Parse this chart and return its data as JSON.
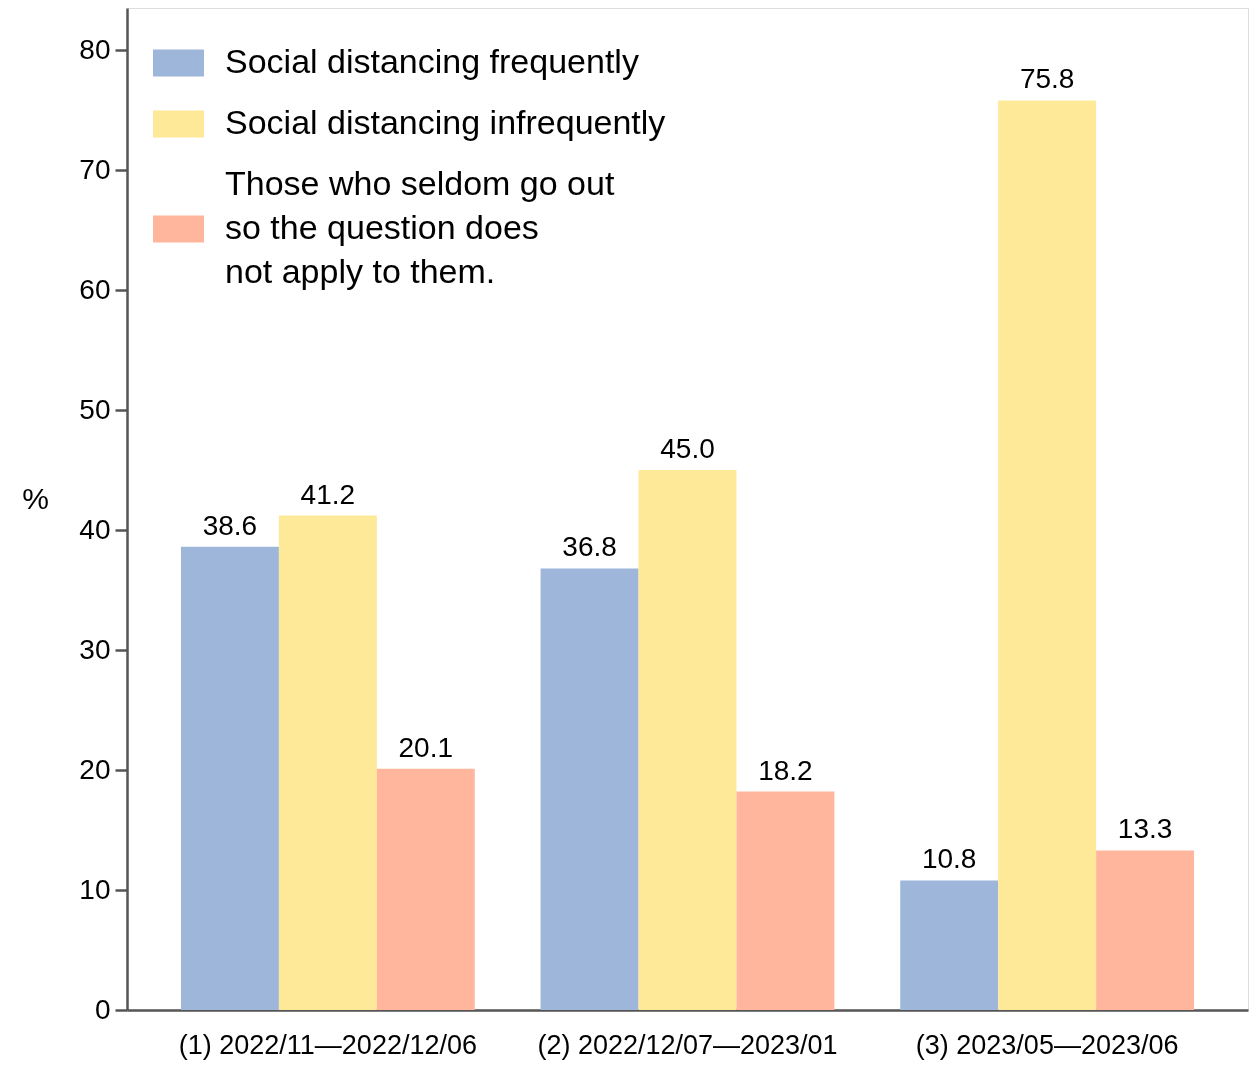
{
  "chart_data": {
    "type": "bar",
    "ylabel": "%",
    "categories": [
      "(1) 2022/11—2022/12/06",
      "(2) 2022/12/07—2023/01",
      "(3) 2023/05—2023/06"
    ],
    "series": [
      {
        "name": "Social distancing frequently",
        "color": "#9db6da",
        "values": [
          38.6,
          36.8,
          10.8
        ],
        "value_labels": [
          "38.6",
          "36.8",
          "10.8"
        ]
      },
      {
        "name": "Social distancing infrequently",
        "color": "#fee999",
        "values": [
          41.2,
          45.0,
          75.8
        ],
        "value_labels": [
          "41.2",
          "45.0",
          "75.8"
        ]
      },
      {
        "name": "Those who seldom go out\nso the question does\nnot apply to them.",
        "color": "#ffb69c",
        "values": [
          20.1,
          18.2,
          13.3
        ],
        "value_labels": [
          "20.1",
          "18.2",
          "13.3"
        ]
      }
    ],
    "ylim": [
      0,
      83.5
    ],
    "yticks": [
      0,
      10,
      20,
      30,
      40,
      50,
      60,
      70,
      80
    ],
    "legend": "top left",
    "grid": false
  }
}
